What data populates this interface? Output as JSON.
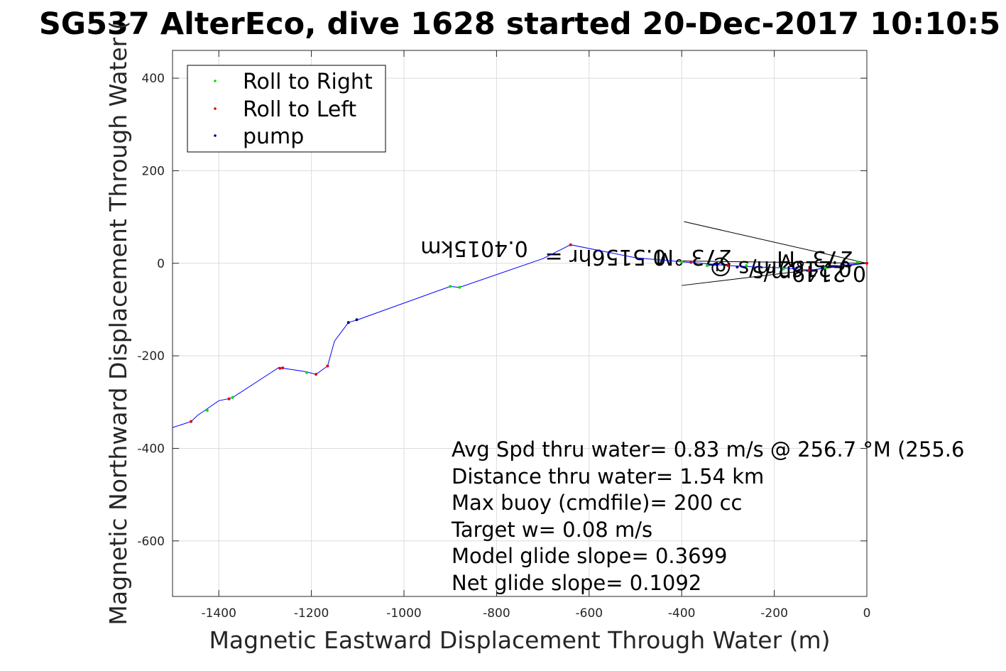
{
  "chart_data": {
    "type": "line",
    "title": "SG537 AlterEco, dive 1628 started 20-Dec-2017 10:10:5",
    "xlabel": "Magnetic Eastward Displacement Through Water (m)",
    "ylabel": "Magnetic Northward Displacement Through Water (",
    "xlim": [
      -1500,
      0
    ],
    "ylim": [
      -720,
      460
    ],
    "xticks": [
      -1400,
      -1200,
      -1000,
      -800,
      -600,
      -400,
      -200,
      0
    ],
    "yticks": [
      -600,
      -400,
      -200,
      0,
      200,
      400
    ],
    "grid": true,
    "legend_position": "top-left",
    "legend": [
      {
        "label": "Roll to Right",
        "color": "#00e000"
      },
      {
        "label": "Roll to Left",
        "color": "#e00000"
      },
      {
        "label": "pump",
        "color": "#000080"
      }
    ],
    "track": {
      "color": "#0000ff",
      "x": [
        0,
        -60,
        -120,
        -180,
        -240,
        -300,
        -360,
        -400,
        -500,
        -640,
        -700,
        -880,
        -900,
        -1100,
        -1120,
        -1150,
        -1165,
        -1190,
        -1205,
        -1220,
        -1260,
        -1270,
        -1370,
        -1380,
        -1400,
        -1430,
        -1445,
        -1460,
        -1500
      ],
      "y": [
        0,
        -5,
        -15,
        -10,
        -8,
        -5,
        0,
        3,
        12,
        40,
        10,
        -52,
        -50,
        -122,
        -128,
        -168,
        -222,
        -240,
        -236,
        -233,
        -227,
        -225,
        -290,
        -293,
        -297,
        -318,
        -328,
        -342,
        -355
      ]
    },
    "roll_right": {
      "x": [
        -20,
        -90,
        -180,
        -260,
        -345,
        -400,
        -880,
        -900,
        -1210,
        -1370,
        -1425
      ],
      "y": [
        3,
        -10,
        -12,
        -5,
        -5,
        3,
        -52,
        -50,
        -236,
        -290,
        -318
      ]
    },
    "roll_left": {
      "x": [
        0,
        -125,
        -300,
        -380,
        -640,
        -1165,
        -1190,
        -1262,
        -1268,
        -1378,
        -1460
      ],
      "y": [
        0,
        -15,
        -5,
        2,
        40,
        -222,
        -240,
        -226,
        -227,
        -293,
        -342
      ]
    },
    "pump": {
      "x": [
        -1102,
        -1120,
        -280
      ],
      "y": [
        -122,
        -128,
        -8
      ]
    },
    "annotations": [
      {
        "text": "0.4015km",
        "rotate": 180
      },
      {
        "text": "0.5156hr =",
        "rotate": 180
      },
      {
        "text": "273 °M",
        "rotate": 180
      },
      {
        "text": "0.2162m/s @",
        "rotate": 180
      },
      {
        "text": "273 °M",
        "rotate": 180
      },
      {
        "text": "0.2149m/s",
        "rotate": 180
      }
    ],
    "stats": [
      "Avg Spd thru water=  0.83 m/s @ 256.7 °M (255.6",
      "Distance thru water=  1.54 km",
      "Max buoy (cmdfile)= 200 cc",
      "Target w= 0.08 m/s",
      "Model glide slope= 0.3699",
      "Net glide slope= 0.1092"
    ]
  }
}
